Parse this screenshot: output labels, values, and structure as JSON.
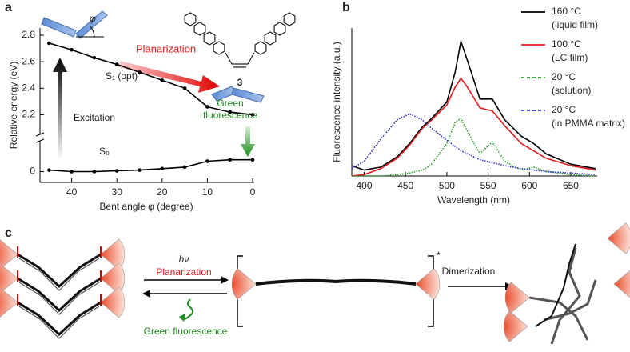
{
  "panels": [
    "a",
    "b",
    "c"
  ],
  "chart_data": [
    {
      "type": "line",
      "xlabel": "Bent angle φ (degree)",
      "ylabel": "Relative energy (eV)",
      "x": [
        45,
        40,
        35,
        30,
        25,
        20,
        15,
        10,
        5,
        0
      ],
      "xlim": [
        47,
        0
      ],
      "xticks": [
        40,
        30,
        20,
        10,
        0
      ],
      "ylim_lower": [
        -0.03,
        0.1
      ],
      "ylim_upper": [
        2.1,
        2.8
      ],
      "yticks": [
        0,
        {
          "value": 2.2,
          "label": "2.2"
        },
        {
          "value": 2.4,
          "label": "2.4"
        },
        {
          "value": 2.6,
          "label": "2.6"
        },
        {
          "value": 2.8,
          "label": "2.8"
        }
      ],
      "series": [
        {
          "name": "S₁ (opt)",
          "color": "#000000",
          "values": [
            2.74,
            2.69,
            2.63,
            2.58,
            2.52,
            2.46,
            2.4,
            2.26,
            2.22,
            2.2
          ]
        },
        {
          "name": "S₀",
          "color": "#000000",
          "values": [
            0.01,
            0,
            0,
            0.005,
            0.01,
            0.02,
            0.03,
            0.07,
            0.08,
            0.08
          ]
        }
      ],
      "annotations": {
        "planarization": "Planarization",
        "excitation": "Excitation",
        "fluorescence": [
          "Green",
          "fluorescence"
        ],
        "angle": "φ",
        "compound": "3"
      }
    },
    {
      "type": "line",
      "xlabel": "Wavelength (nm)",
      "ylabel": "Fluorescence intensity (a.u.)",
      "x": [
        385,
        400,
        420,
        440,
        455,
        470,
        480,
        500,
        510,
        517,
        525,
        540,
        555,
        570,
        590,
        605,
        620,
        650,
        680
      ],
      "xlim": [
        385,
        680
      ],
      "xticks": [
        400,
        450,
        500,
        550,
        600,
        650
      ],
      "ylim": [
        0,
        1
      ],
      "series": [
        {
          "name": "160 °C",
          "note": "(liquid film)",
          "color": "#000000",
          "dash": "solid",
          "legend_dash": "solid",
          "values": [
            0.07,
            0.04,
            0.06,
            0.13,
            0.22,
            0.33,
            0.38,
            0.5,
            0.7,
            0.91,
            0.78,
            0.52,
            0.52,
            0.38,
            0.27,
            0.22,
            0.15,
            0.08,
            0.05
          ]
        },
        {
          "name": "100 °C",
          "note": "(LC film)",
          "color": "#e31a1c",
          "dash": "solid",
          "legend_dash": "solid",
          "values": [
            0.0,
            0.01,
            0.05,
            0.12,
            0.21,
            0.32,
            0.37,
            0.48,
            0.6,
            0.66,
            0.6,
            0.46,
            0.44,
            0.34,
            0.22,
            0.17,
            0.12,
            0.07,
            0.04
          ]
        },
        {
          "name": "20 °C",
          "note": "(solution)",
          "color": "#2ca02c",
          "dash": "dotted",
          "legend_dash": "dashed",
          "values": [
            0,
            0,
            0,
            0.01,
            0.02,
            0.04,
            0.07,
            0.22,
            0.36,
            0.39,
            0.3,
            0.15,
            0.23,
            0.1,
            0.04,
            0.06,
            0.03,
            0.01,
            0
          ]
        },
        {
          "name": "20 °C",
          "note": "(in PMMA matrix)",
          "color": "#3333cc",
          "dash": "dotted",
          "legend_dash": "dashed",
          "values": [
            0.05,
            0.1,
            0.25,
            0.38,
            0.42,
            0.38,
            0.33,
            0.24,
            0.2,
            0.17,
            0.15,
            0.11,
            0.09,
            0.07,
            0.05,
            0.04,
            0.03,
            0.02,
            0.01
          ]
        }
      ]
    }
  ],
  "scheme": {
    "light": "hν",
    "step1": "Planarization",
    "emission": "Green fluorescence",
    "excited": "*",
    "step2": "Dimerization"
  }
}
